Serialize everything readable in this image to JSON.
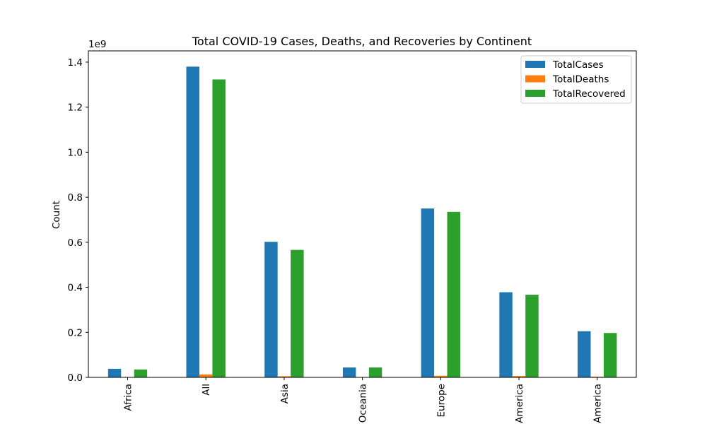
{
  "chart_data": {
    "type": "bar",
    "title": "Total COVID-19 Cases, Deaths, and Recoveries by Continent",
    "xlabel": "",
    "ylabel": "Count",
    "y_multiplier_label": "1e9",
    "y_multiplier": 1000000000,
    "ylim": [
      0,
      1.45
    ],
    "y_ticks": [
      0.0,
      0.2,
      0.4,
      0.6,
      0.8,
      1.0,
      1.2,
      1.4
    ],
    "y_tick_labels": [
      "0.0",
      "0.2",
      "0.4",
      "0.6",
      "0.8",
      "1.0",
      "1.2",
      "1.4"
    ],
    "categories": [
      "Africa",
      "All",
      "Asia",
      "Oceania",
      "Europe",
      "America",
      "America"
    ],
    "series": [
      {
        "name": "TotalCases",
        "color": "#1f77b4",
        "values": [
          0.038,
          1.38,
          0.602,
          0.044,
          0.75,
          0.378,
          0.205
        ]
      },
      {
        "name": "TotalDeaths",
        "color": "#ff7f0e",
        "values": [
          0.001,
          0.013,
          0.005,
          0.0005,
          0.007,
          0.006,
          0.003
        ]
      },
      {
        "name": "TotalRecovered",
        "color": "#2ca02c",
        "values": [
          0.035,
          1.323,
          0.566,
          0.044,
          0.735,
          0.367,
          0.197
        ]
      }
    ],
    "grid": false,
    "legend_position": "top-right"
  }
}
